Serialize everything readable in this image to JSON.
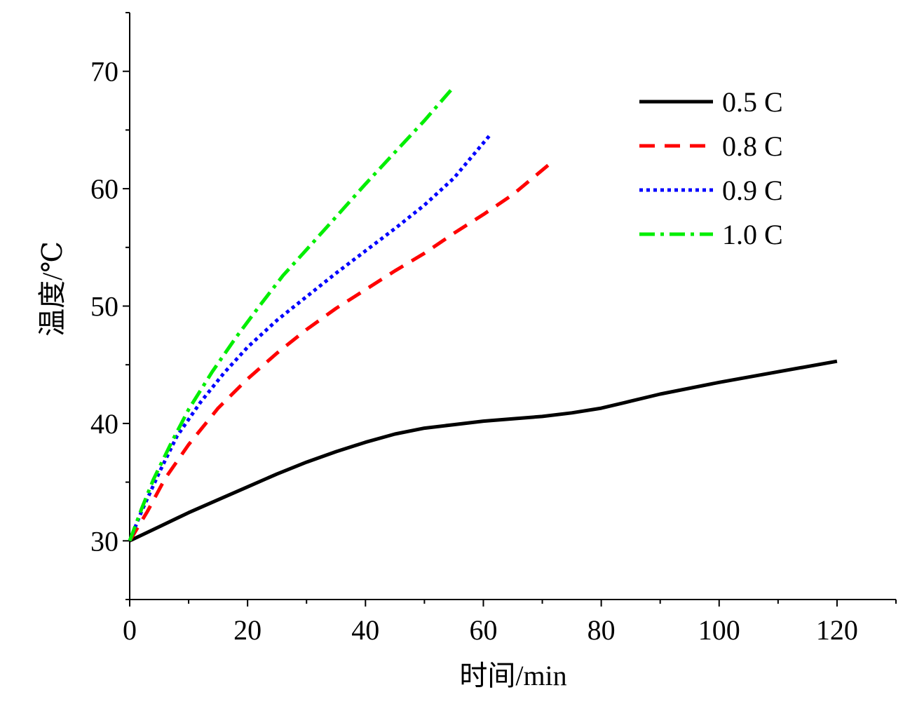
{
  "chart_data": {
    "type": "line",
    "title": "",
    "xlabel": "时间/min",
    "ylabel": "温度/℃",
    "xlim": [
      0,
      130
    ],
    "ylim": [
      25,
      75
    ],
    "x_ticks": [
      0,
      20,
      40,
      60,
      80,
      100,
      120
    ],
    "y_ticks": [
      30,
      40,
      50,
      60,
      70
    ],
    "grid": false,
    "legend_position": "top-right",
    "series": [
      {
        "name": "0.5 C",
        "color": "#000000",
        "dash": "solid",
        "x": [
          0,
          5,
          10,
          15,
          20,
          25,
          30,
          35,
          40,
          45,
          50,
          55,
          60,
          65,
          70,
          75,
          80,
          85,
          90,
          100,
          110,
          120
        ],
        "y": [
          30.0,
          31.2,
          32.4,
          33.5,
          34.6,
          35.7,
          36.7,
          37.6,
          38.4,
          39.1,
          39.6,
          39.9,
          40.2,
          40.4,
          40.6,
          40.9,
          41.3,
          41.9,
          42.5,
          43.5,
          44.4,
          45.3
        ]
      },
      {
        "name": "0.8 C",
        "color": "#ff0000",
        "dash": "dashed",
        "x": [
          0,
          3,
          6,
          10,
          15,
          20,
          25,
          30,
          35,
          40,
          45,
          50,
          55,
          60,
          65,
          71
        ],
        "y": [
          30.0,
          32.5,
          35.3,
          38.2,
          41.3,
          43.8,
          46.0,
          48.0,
          49.8,
          51.4,
          53.0,
          54.5,
          56.2,
          57.8,
          59.5,
          62.0
        ]
      },
      {
        "name": "0.9 C",
        "color": "#0000ff",
        "dash": "dotted",
        "x": [
          0,
          2,
          5,
          8,
          12,
          16,
          20,
          25,
          30,
          35,
          40,
          45,
          50,
          55,
          61
        ],
        "y": [
          30.0,
          32.5,
          35.8,
          38.9,
          41.8,
          44.3,
          46.5,
          48.8,
          50.8,
          52.8,
          54.7,
          56.6,
          58.6,
          60.9,
          64.5
        ]
      },
      {
        "name": "1.0 C",
        "color": "#00ee00",
        "dash": "dashdot",
        "x": [
          0,
          2,
          4,
          7,
          10,
          14,
          18,
          22,
          26,
          30,
          35,
          40,
          45,
          50,
          54.5
        ],
        "y": [
          30.0,
          32.7,
          35.2,
          38.3,
          41.2,
          44.4,
          47.3,
          50.0,
          52.6,
          54.8,
          57.6,
          60.4,
          63.1,
          65.8,
          68.4
        ]
      }
    ]
  }
}
